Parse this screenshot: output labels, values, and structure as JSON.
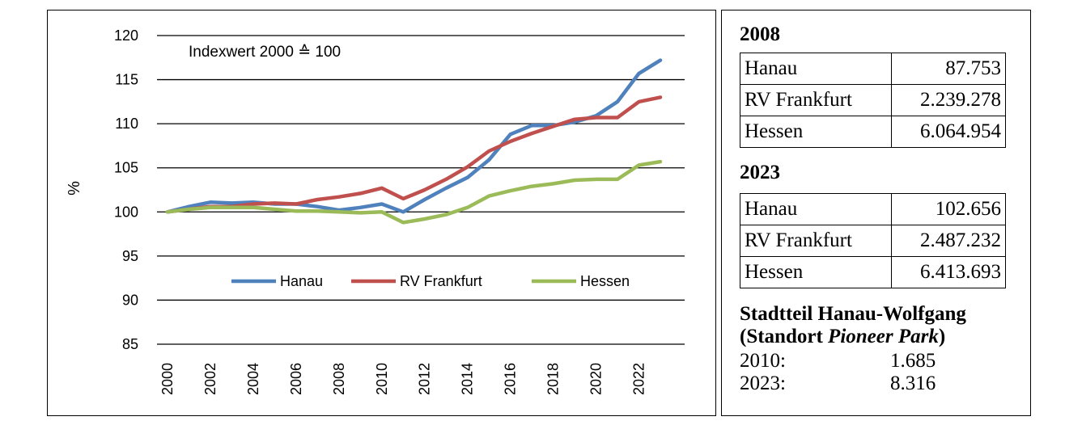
{
  "chart_data": {
    "type": "line",
    "title": "",
    "annotation": "Indexwert 2000 ≙ 100",
    "xlabel": "",
    "ylabel": "%",
    "ylim": [
      85,
      120
    ],
    "yticks": [
      85,
      90,
      95,
      100,
      105,
      110,
      115,
      120
    ],
    "xlim": [
      2000,
      2023
    ],
    "xticks": [
      "2000",
      "2002",
      "2004",
      "2006",
      "2008",
      "2010",
      "2012",
      "2014",
      "2016",
      "2018",
      "2020",
      "2022"
    ],
    "grid": "horizontal",
    "legend_position": "bottom-center",
    "x": [
      2000,
      2001,
      2002,
      2003,
      2004,
      2005,
      2006,
      2007,
      2008,
      2009,
      2010,
      2011,
      2012,
      2013,
      2014,
      2015,
      2016,
      2017,
      2018,
      2019,
      2020,
      2021,
      2022,
      2023
    ],
    "series": [
      {
        "name": "Hanau",
        "color": "#4f81bd",
        "values": [
          100.0,
          100.6,
          101.1,
          101.0,
          101.1,
          100.9,
          100.9,
          100.6,
          100.2,
          100.5,
          100.9,
          100.0,
          101.4,
          102.7,
          103.9,
          105.9,
          108.8,
          109.8,
          109.8,
          110.2,
          110.9,
          112.5,
          115.7,
          117.2
        ]
      },
      {
        "name": "RV Frankfurt",
        "color": "#c0504d",
        "values": [
          100.0,
          100.3,
          100.6,
          100.6,
          100.9,
          101.0,
          100.9,
          101.4,
          101.7,
          102.1,
          102.7,
          101.5,
          102.5,
          103.7,
          105.1,
          106.9,
          108.0,
          108.9,
          109.7,
          110.5,
          110.7,
          110.7,
          112.5,
          113.0
        ]
      },
      {
        "name": "Hessen",
        "color": "#9bbb59",
        "values": [
          100.0,
          100.3,
          100.5,
          100.5,
          100.5,
          100.3,
          100.1,
          100.1,
          100.0,
          99.9,
          100.0,
          98.8,
          99.2,
          99.7,
          100.5,
          101.8,
          102.4,
          102.9,
          103.2,
          103.6,
          103.7,
          103.7,
          105.3,
          105.7
        ]
      }
    ]
  },
  "info": {
    "blocks": [
      {
        "year": "2008",
        "rows": [
          {
            "name": "Hanau",
            "value": "87.753"
          },
          {
            "name": "RV Frankfurt",
            "value": "2.239.278"
          },
          {
            "name": "Hessen",
            "value": "6.064.954"
          }
        ]
      },
      {
        "year": "2023",
        "rows": [
          {
            "name": "Hanau",
            "value": "102.656"
          },
          {
            "name": "RV Frankfurt",
            "value": "2.487.232"
          },
          {
            "name": "Hessen",
            "value": "6.413.693"
          }
        ]
      }
    ],
    "district": {
      "title_line1": "Stadtteil Hanau-Wolfgang",
      "title_prefix": "(Standort ",
      "title_italic": "Pioneer Park",
      "title_suffix": ")",
      "rows": [
        {
          "label": "2010:",
          "value": "1.685"
        },
        {
          "label": "2023:",
          "value": "8.316"
        }
      ]
    }
  }
}
